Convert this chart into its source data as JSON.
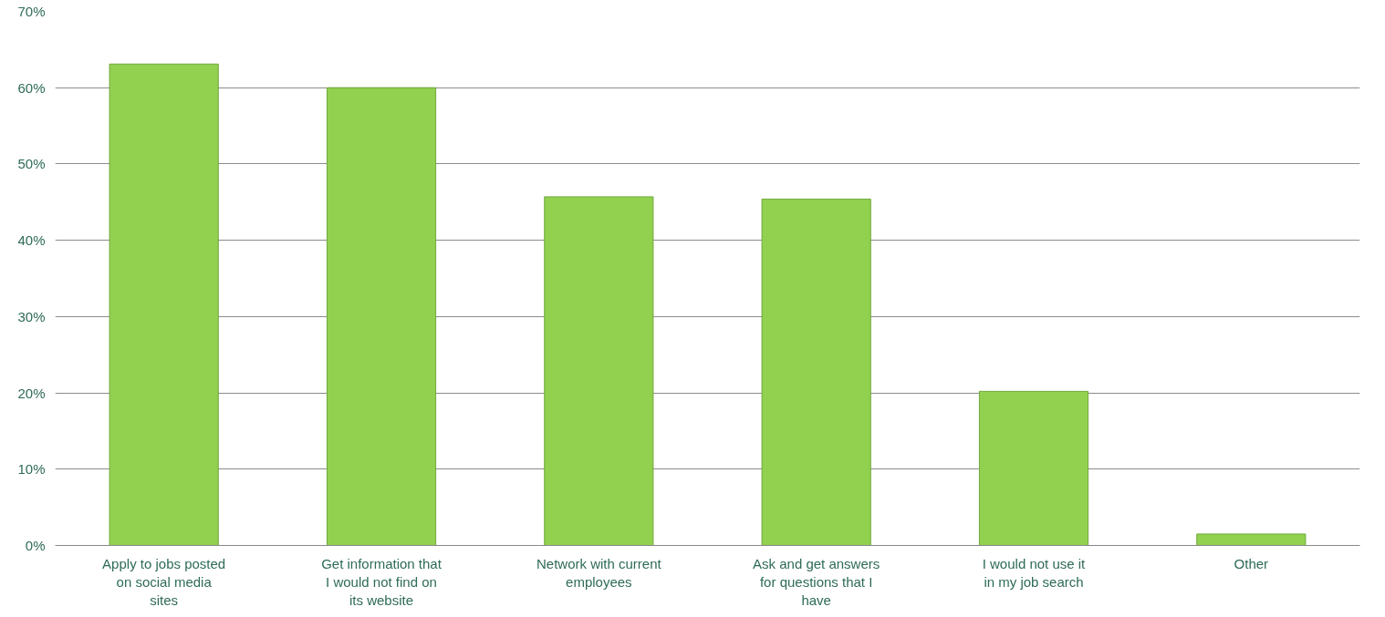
{
  "chart_data": {
    "type": "bar",
    "categories": [
      "Apply to jobs posted on social media sites",
      "Get information that I would not find on its website",
      "Network with current employees",
      "Ask and get answers for questions that I have",
      "I would not use it in my job search",
      "Other"
    ],
    "values": [
      63.1,
      60.0,
      45.7,
      45.4,
      20.2,
      1.5
    ],
    "color": "#92d050",
    "ylim": [
      0,
      70
    ],
    "yticks": [
      {
        "value": 0,
        "label": "0%"
      },
      {
        "value": 10,
        "label": "10%"
      },
      {
        "value": 20,
        "label": "20%"
      },
      {
        "value": 30,
        "label": "30%"
      },
      {
        "value": 40,
        "label": "40%"
      },
      {
        "value": 50,
        "label": "50%"
      },
      {
        "value": 60,
        "label": "60%"
      },
      {
        "value": 70,
        "label": "70%"
      }
    ],
    "grid": "y"
  }
}
